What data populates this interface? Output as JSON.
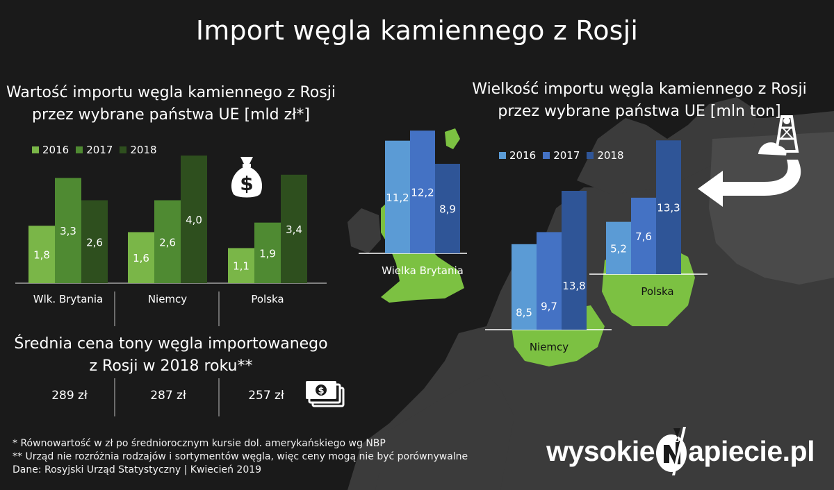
{
  "title": "Import węgla kamiennego z Rosji",
  "left_chart": {
    "subtitle_line1": "Wartość importu węgla kamiennego z Rosji",
    "subtitle_line2": "przez wybrane państwa UE [mld zł*]"
  },
  "right_chart": {
    "subtitle_line1": "Wielkość importu węgla kamiennego z Rosji",
    "subtitle_line2": "przez wybrane państwa UE [mln ton]"
  },
  "price_section": {
    "heading_line1": "Średnia cena tony węgla importowanego",
    "heading_line2": "z Rosji w 2018 roku**",
    "prices": [
      "289 zł",
      "287 zł",
      "257 zł"
    ]
  },
  "footnotes": [
    "* Równowartość w zł po średniorocznym kursie dol. amerykańskiego wg NBP",
    "** Urząd nie rozróżnia rodzajów i sortymentów węgla, więc ceny mogą nie być porównywalne",
    "Dane: Rosyjski Urząd Statystyczny  |  Kwiecień 2019"
  ],
  "logo": {
    "left": "wysokie",
    "right": "apiecie.pl"
  },
  "icons": [
    "money-bag-icon",
    "banknotes-icon",
    "coal-mine-icon",
    "arrow-icon"
  ],
  "colors": {
    "background": "#1a1a1a",
    "map_land": "#3b3b3b",
    "map_highlight": "#7cc142",
    "green_2016": "#7ab648",
    "green_2017": "#4f8a32",
    "green_2018": "#2e4f1e",
    "blue_2016": "#5b9bd5",
    "blue_2017": "#4472c4",
    "blue_2018": "#2f5597"
  },
  "chart_data": [
    {
      "type": "bar",
      "title": "Wartość importu węgla kamiennego z Rosji przez wybrane państwa UE [mld zł*]",
      "categories": [
        "Wlk. Brytania",
        "Niemcy",
        "Polska"
      ],
      "series": [
        {
          "name": "2016",
          "values": [
            1.8,
            1.6,
            1.1
          ],
          "labels": [
            "1,8",
            "1,6",
            "1,1"
          ],
          "color": "#7ab648"
        },
        {
          "name": "2017",
          "values": [
            3.3,
            2.6,
            1.9
          ],
          "labels": [
            "3,3",
            "2,6",
            "1,9"
          ],
          "color": "#4f8a32"
        },
        {
          "name": "2018",
          "values": [
            2.6,
            4.0,
            3.4
          ],
          "labels": [
            "2,6",
            "4,0",
            "3,4"
          ],
          "color": "#2e4f1e"
        }
      ],
      "ylim": [
        0,
        4.2
      ],
      "legend": "top-left"
    },
    {
      "type": "bar",
      "title": "Wielkość importu węgla kamiennego z Rosji przez wybrane państwa UE [mln ton]",
      "categories": [
        "Wielka Brytania",
        "Niemcy",
        "Polska"
      ],
      "series": [
        {
          "name": "2016",
          "values": [
            11.2,
            8.5,
            5.2
          ],
          "labels": [
            "11,2",
            "8,5",
            "5,2"
          ],
          "color": "#5b9bd5"
        },
        {
          "name": "2017",
          "values": [
            12.2,
            9.7,
            7.6
          ],
          "labels": [
            "12,2",
            "9,7",
            "7,6"
          ],
          "color": "#4472c4"
        },
        {
          "name": "2018",
          "values": [
            8.9,
            13.8,
            13.3
          ],
          "labels": [
            "8,9",
            "13,8",
            "13,3"
          ],
          "color": "#2f5597"
        }
      ],
      "legend": "top-left"
    }
  ]
}
